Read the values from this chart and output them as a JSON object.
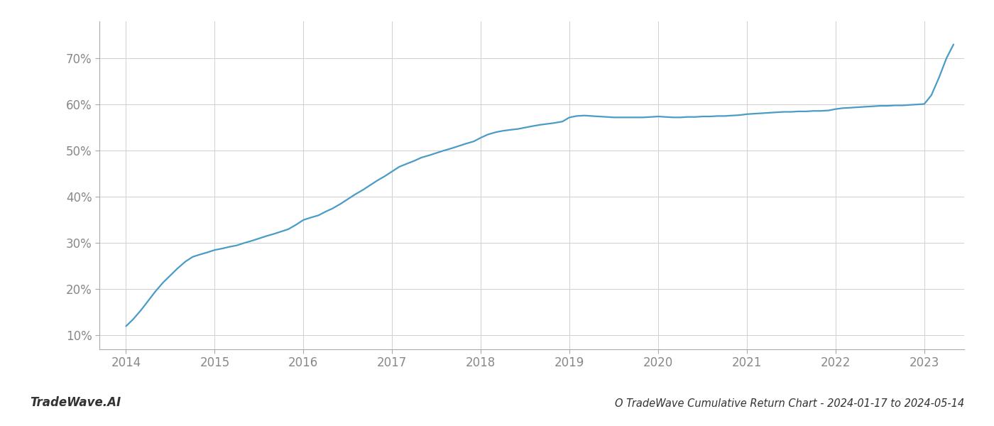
{
  "title": "O TradeWave Cumulative Return Chart - 2024-01-17 to 2024-05-14",
  "watermark": "TradeWave.AI",
  "line_color": "#4a9cc7",
  "background_color": "#ffffff",
  "grid_color": "#d0d0d0",
  "axis_color": "#aaaaaa",
  "text_color": "#888888",
  "bottom_text_color": "#333333",
  "x_values": [
    2014.0,
    2014.08,
    2014.17,
    2014.25,
    2014.33,
    2014.42,
    2014.5,
    2014.58,
    2014.67,
    2014.75,
    2014.83,
    2014.92,
    2015.0,
    2015.08,
    2015.17,
    2015.25,
    2015.33,
    2015.42,
    2015.5,
    2015.58,
    2015.67,
    2015.75,
    2015.83,
    2015.92,
    2016.0,
    2016.08,
    2016.17,
    2016.25,
    2016.33,
    2016.42,
    2016.5,
    2016.58,
    2016.67,
    2016.75,
    2016.83,
    2016.92,
    2017.0,
    2017.08,
    2017.17,
    2017.25,
    2017.33,
    2017.42,
    2017.5,
    2017.58,
    2017.67,
    2017.75,
    2017.83,
    2017.92,
    2018.0,
    2018.08,
    2018.17,
    2018.25,
    2018.33,
    2018.42,
    2018.5,
    2018.58,
    2018.67,
    2018.75,
    2018.83,
    2018.92,
    2019.0,
    2019.08,
    2019.17,
    2019.25,
    2019.33,
    2019.42,
    2019.5,
    2019.58,
    2019.67,
    2019.75,
    2019.83,
    2019.92,
    2020.0,
    2020.08,
    2020.17,
    2020.25,
    2020.33,
    2020.42,
    2020.5,
    2020.58,
    2020.67,
    2020.75,
    2020.83,
    2020.92,
    2021.0,
    2021.08,
    2021.17,
    2021.25,
    2021.33,
    2021.42,
    2021.5,
    2021.58,
    2021.67,
    2021.75,
    2021.83,
    2021.92,
    2022.0,
    2022.08,
    2022.17,
    2022.25,
    2022.33,
    2022.42,
    2022.5,
    2022.58,
    2022.67,
    2022.75,
    2022.83,
    2022.92,
    2023.0,
    2023.08,
    2023.17,
    2023.25,
    2023.33
  ],
  "y_values": [
    12.0,
    13.5,
    15.5,
    17.5,
    19.5,
    21.5,
    23.0,
    24.5,
    26.0,
    27.0,
    27.5,
    28.0,
    28.5,
    28.8,
    29.2,
    29.5,
    30.0,
    30.5,
    31.0,
    31.5,
    32.0,
    32.5,
    33.0,
    34.0,
    35.0,
    35.5,
    36.0,
    36.8,
    37.5,
    38.5,
    39.5,
    40.5,
    41.5,
    42.5,
    43.5,
    44.5,
    45.5,
    46.5,
    47.2,
    47.8,
    48.5,
    49.0,
    49.5,
    50.0,
    50.5,
    51.0,
    51.5,
    52.0,
    52.8,
    53.5,
    54.0,
    54.3,
    54.5,
    54.7,
    55.0,
    55.3,
    55.6,
    55.8,
    56.0,
    56.3,
    57.2,
    57.5,
    57.6,
    57.5,
    57.4,
    57.3,
    57.2,
    57.2,
    57.2,
    57.2,
    57.2,
    57.3,
    57.4,
    57.3,
    57.2,
    57.2,
    57.3,
    57.3,
    57.4,
    57.4,
    57.5,
    57.5,
    57.6,
    57.7,
    57.9,
    58.0,
    58.1,
    58.2,
    58.3,
    58.4,
    58.4,
    58.5,
    58.5,
    58.6,
    58.6,
    58.7,
    59.0,
    59.2,
    59.3,
    59.4,
    59.5,
    59.6,
    59.7,
    59.7,
    59.8,
    59.8,
    59.9,
    60.0,
    60.1,
    62.0,
    66.0,
    70.0,
    73.0
  ],
  "yticks": [
    10,
    20,
    30,
    40,
    50,
    60,
    70
  ],
  "xticks": [
    2014,
    2015,
    2016,
    2017,
    2018,
    2019,
    2020,
    2021,
    2022,
    2023
  ],
  "xlim": [
    2013.7,
    2023.45
  ],
  "ylim": [
    7,
    78
  ],
  "line_width": 1.6,
  "title_fontsize": 10.5,
  "tick_fontsize": 12,
  "watermark_fontsize": 12
}
